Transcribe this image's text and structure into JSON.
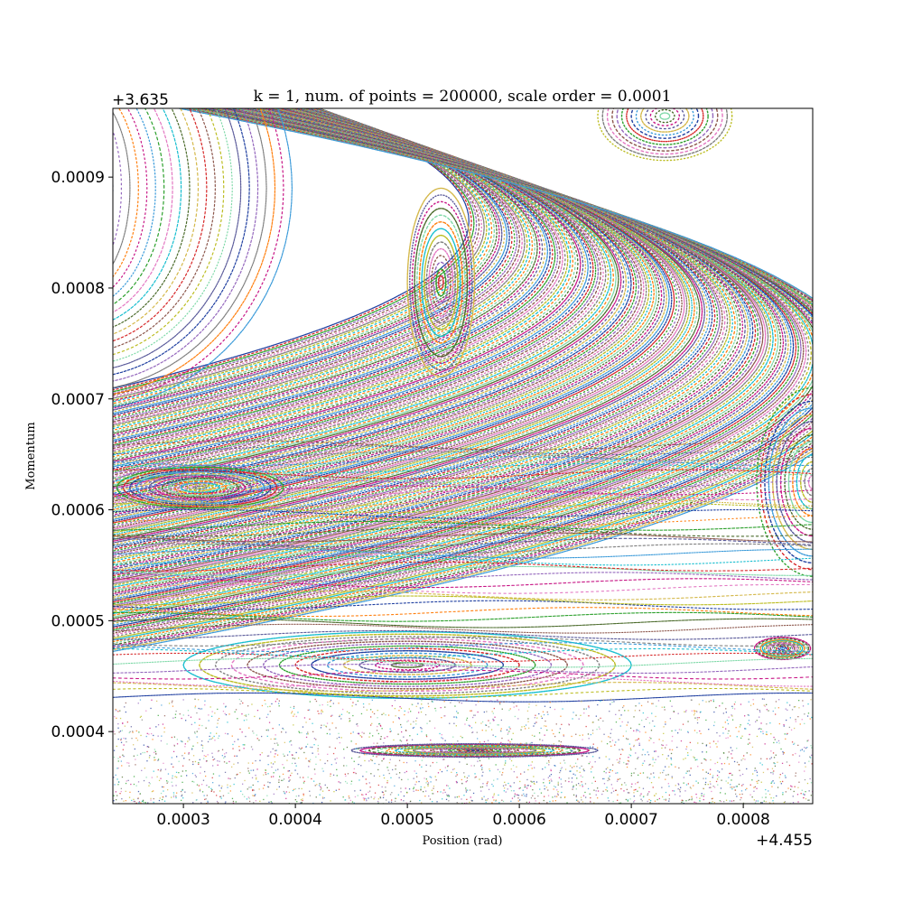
{
  "chart_data": {
    "type": "scatter",
    "title": "k = 1, num. of  points = 200000, scale order = 0.0001",
    "xlabel": "Position (rad)",
    "ylabel": "Momentum",
    "x_offset_label": "+4.455",
    "y_offset_label": "+3.635",
    "xlim": [
      0.000237,
      0.000862
    ],
    "ylim": [
      0.000335,
      0.000962
    ],
    "x_ticks": [
      0.0003,
      0.0004,
      0.0005,
      0.0006,
      0.0007,
      0.0008
    ],
    "x_tick_labels": [
      "0.0003",
      "0.0004",
      "0.0005",
      "0.0006",
      "0.0007",
      "0.0008"
    ],
    "y_ticks": [
      0.0004,
      0.0005,
      0.0006,
      0.0007,
      0.0008,
      0.0009
    ],
    "y_tick_labels": [
      "0.0004",
      "0.0005",
      "0.0006",
      "0.0007",
      "0.0008",
      "0.0009"
    ],
    "grid": false,
    "point_colors": [
      "#1f3fa0",
      "#d62728",
      "#2ca02c",
      "#9467bd",
      "#8c564b",
      "#e377c2",
      "#7f7f7f",
      "#bcbd22",
      "#17becf",
      "#ff7f0e",
      "#7fd9a8",
      "#4a6a2a",
      "#c71585",
      "#5a5a9a",
      "#d4b84a",
      "#3a9ad9"
    ],
    "features": {
      "islands": [
        {
          "name": "island-upper-center",
          "cx": 0.00053,
          "cy": 0.000805,
          "rx": 3e-05,
          "ry": 8.5e-05
        },
        {
          "name": "island-left",
          "cx": 0.000315,
          "cy": 0.00062,
          "rx": 8e-05,
          "ry": 2e-05
        },
        {
          "name": "island-lower-center",
          "cx": 0.0005,
          "cy": 0.00046,
          "rx": 0.0002,
          "ry": 3e-05
        },
        {
          "name": "island-bottom-ellipse",
          "cx": 0.00056,
          "cy": 0.000383,
          "rx": 0.00011,
          "ry": 6e-06
        },
        {
          "name": "island-right",
          "cx": 0.000862,
          "cy": 0.000625,
          "rx": 5e-05,
          "ry": 8.5e-05
        },
        {
          "name": "island-top-right",
          "cx": 0.00073,
          "cy": 0.000955,
          "rx": 6e-05,
          "ry": 4e-05
        },
        {
          "name": "island-small-right",
          "cx": 0.000835,
          "cy": 0.000475,
          "rx": 2.5e-05,
          "ry": 1e-05
        }
      ],
      "chaotic_band": {
        "y_min": 0.000335,
        "y_max": 0.00043
      }
    }
  }
}
